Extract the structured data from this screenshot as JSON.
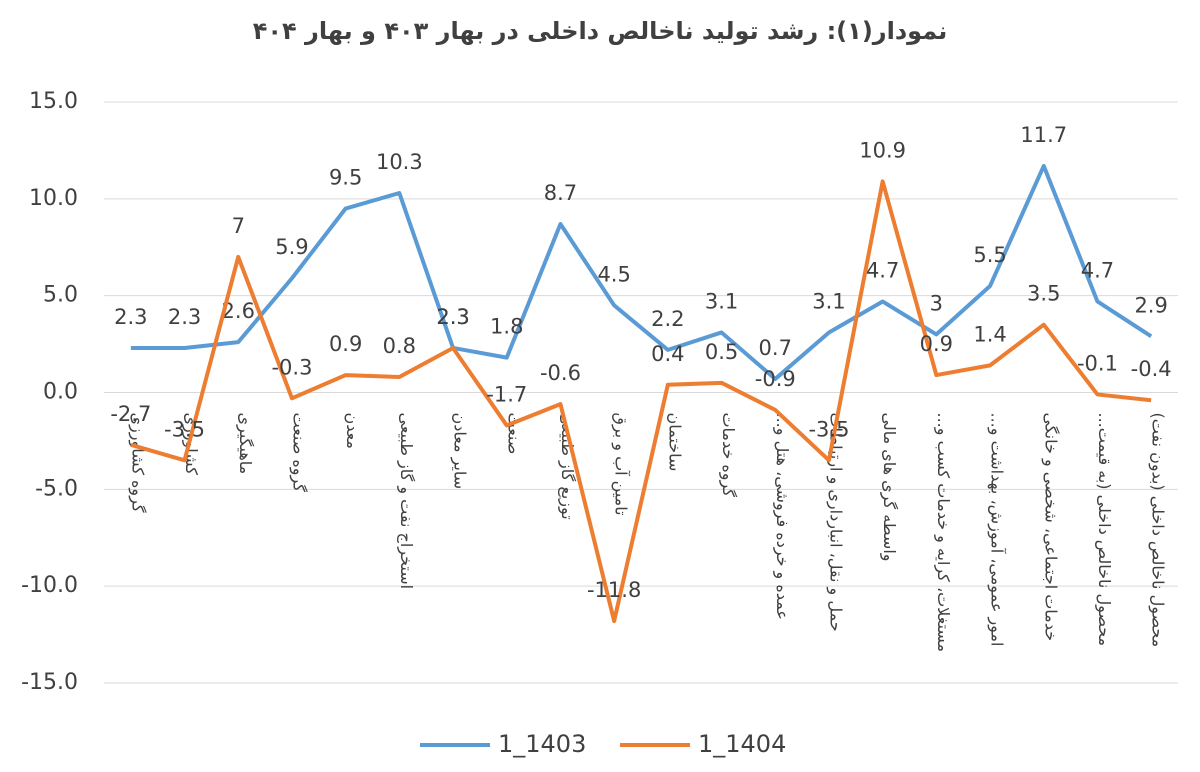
{
  "chart_data": {
    "type": "line",
    "title": "نمودار(۱): رشد تولید ناخالص داخلی در بهار ۴۰۳ و بهار ۴۰۴",
    "categories": [
      "گروه کشاورزی",
      "کشاورزی",
      "ماهیگیری",
      "گروه صنعت",
      "معدن",
      "استخراج نفت و گاز طبیعی",
      "سایر معادن",
      "صنعت",
      "توزیع گاز طبیعی",
      "تامین آب و برق",
      "ساختمان",
      "گروه خدمات",
      "عمده و خرده فروشی، هتل و...",
      "حمل و نقل، انبارداری و ارتباطات",
      "واسطه گری های مالی",
      "مستغلات، کرایه و خدمات کسب و...",
      "امور عمومی، آموزش، بهداشت و...",
      "خدمات اجتماعی، شخصی و خانگی",
      "محصول ناخالص داخلی (به قیمت...",
      "محصول ناخالص داخلی (بدون نفت)"
    ],
    "series": [
      {
        "name": "1_1403",
        "color": "#5b9bd5",
        "values": [
          2.3,
          2.3,
          2.6,
          5.9,
          9.5,
          10.3,
          2.3,
          1.8,
          8.7,
          4.5,
          2.2,
          3.1,
          0.7,
          3.1,
          4.7,
          3.0,
          5.5,
          11.7,
          4.7,
          2.9
        ]
      },
      {
        "name": "1_1404",
        "color": "#ed7d31",
        "values": [
          -2.7,
          -3.5,
          7.0,
          -0.3,
          0.9,
          0.8,
          2.3,
          -1.7,
          -0.6,
          -11.8,
          0.4,
          0.5,
          -0.9,
          -3.5,
          10.9,
          0.9,
          1.4,
          3.5,
          -0.1,
          -0.4
        ]
      }
    ],
    "ylim": [
      -15,
      15
    ],
    "yticks": [
      {
        "value": -15,
        "label": "-15.0"
      },
      {
        "value": -10,
        "label": "-10.0"
      },
      {
        "value": -5,
        "label": "-5.0"
      },
      {
        "value": 0,
        "label": "0.0"
      },
      {
        "value": 5,
        "label": "5.0"
      },
      {
        "value": 10,
        "label": "10.0"
      },
      {
        "value": 15,
        "label": "15.0"
      }
    ],
    "grid": true,
    "legend": "bottom"
  }
}
